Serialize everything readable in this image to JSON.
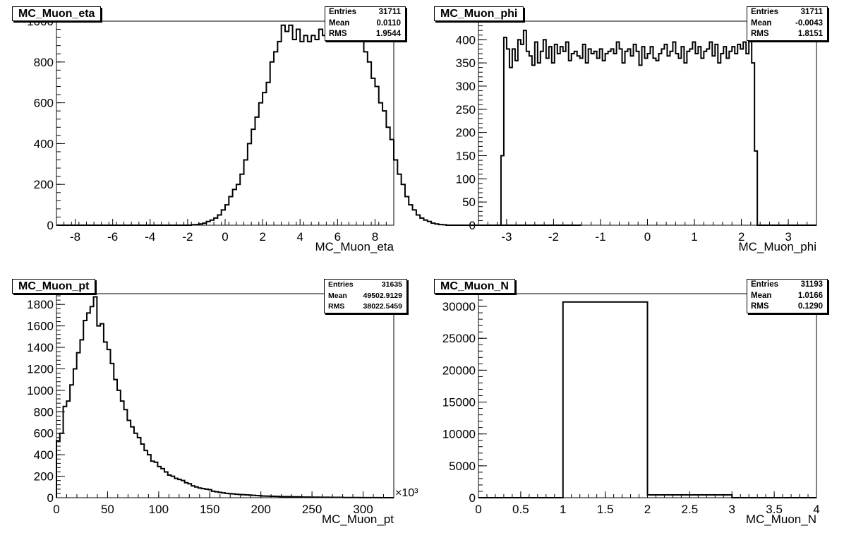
{
  "chart_data": [
    {
      "type": "histogram",
      "title": "MC_Muon_eta",
      "xlabel": "MC_Muon_eta",
      "ylabel": "",
      "xlim": [
        -9,
        9
      ],
      "ylim": [
        0,
        1000
      ],
      "xticks": [
        -8,
        -6,
        -4,
        -2,
        0,
        2,
        4,
        6,
        8
      ],
      "yticks": [
        0,
        200,
        400,
        600,
        800,
        1000
      ],
      "x_edges_start": -9,
      "bin_width": 0.2,
      "values": [
        0,
        0,
        0,
        0,
        0,
        0,
        0,
        0,
        0,
        0,
        0,
        0,
        0,
        0,
        0,
        0,
        0,
        0,
        0,
        0,
        0,
        0,
        0,
        0,
        0,
        0,
        0,
        0,
        0,
        0,
        0,
        0,
        0,
        0,
        0,
        0,
        2,
        3,
        6,
        10,
        18,
        25,
        35,
        50,
        75,
        100,
        140,
        175,
        200,
        250,
        320,
        400,
        470,
        530,
        600,
        650,
        700,
        800,
        850,
        900,
        980,
        950,
        980,
        910,
        960,
        900,
        930,
        900,
        930,
        910,
        960,
        930,
        900,
        960,
        940,
        980,
        950,
        960,
        950,
        940,
        920,
        900,
        850,
        800,
        720,
        680,
        600,
        560,
        480,
        420,
        320,
        250,
        200,
        140,
        100,
        75,
        50,
        35,
        25,
        18,
        10,
        6,
        3,
        2,
        0,
        0,
        0,
        0,
        0,
        0,
        0,
        0,
        0,
        0,
        0,
        0,
        0,
        0,
        0,
        0,
        0,
        0,
        0,
        0,
        0,
        0,
        0,
        0,
        0,
        0,
        0,
        0,
        0,
        0,
        0,
        0,
        0,
        0,
        0,
        0
      ],
      "stats": {
        "entries": "31711",
        "mean": "0.0110",
        "rms": "1.9544"
      }
    },
    {
      "type": "histogram",
      "title": "MC_Muon_phi",
      "xlabel": "MC_Muon_phi",
      "ylabel": "",
      "xlim": [
        -3.6,
        3.6
      ],
      "ylim": [
        0,
        440
      ],
      "xticks": [
        -3,
        -2,
        -1,
        0,
        1,
        2,
        3
      ],
      "yticks": [
        0,
        50,
        100,
        150,
        200,
        250,
        300,
        350,
        400
      ],
      "x_edges_start": -3.6,
      "bin_width": 0.06,
      "values": [
        0,
        0,
        0,
        0,
        0,
        0,
        0,
        0,
        150,
        405,
        380,
        340,
        380,
        355,
        400,
        390,
        420,
        375,
        365,
        345,
        395,
        350,
        375,
        400,
        360,
        385,
        350,
        390,
        370,
        385,
        375,
        395,
        355,
        370,
        375,
        365,
        360,
        390,
        350,
        380,
        370,
        375,
        360,
        380,
        355,
        370,
        375,
        380,
        370,
        395,
        380,
        350,
        375,
        380,
        365,
        390,
        375,
        345,
        385,
        360,
        370,
        385,
        360,
        355,
        370,
        380,
        390,
        365,
        375,
        395,
        370,
        360,
        385,
        350,
        375,
        380,
        395,
        370,
        385,
        360,
        375,
        380,
        395,
        365,
        390,
        350,
        370,
        385,
        360,
        375,
        385,
        370,
        390,
        380,
        395,
        370,
        405,
        350,
        160,
        0,
        0,
        0,
        0,
        0,
        0,
        0,
        0,
        0,
        0,
        0,
        0,
        0,
        0,
        0,
        0,
        0,
        0,
        0,
        0,
        0
      ],
      "stats": {
        "entries": "31711",
        "mean": "-0.0043",
        "rms": "1.8151"
      }
    },
    {
      "type": "histogram",
      "title": "MC_Muon_pt",
      "xlabel": "MC_Muon_pt",
      "ylabel": "",
      "x_multiplier_label": "×10³",
      "xlim": [
        0,
        330
      ],
      "ylim": [
        0,
        1900
      ],
      "xticks": [
        0,
        50,
        100,
        150,
        200,
        250,
        300
      ],
      "yticks": [
        0,
        200,
        400,
        600,
        800,
        1000,
        1200,
        1400,
        1600,
        1800
      ],
      "x_edges_start": 0,
      "bin_width": 3.3,
      "values": [
        530,
        600,
        850,
        900,
        1050,
        1200,
        1350,
        1470,
        1650,
        1720,
        1780,
        1870,
        1600,
        1620,
        1450,
        1380,
        1250,
        1100,
        1000,
        900,
        820,
        720,
        660,
        600,
        560,
        500,
        440,
        400,
        340,
        330,
        290,
        270,
        240,
        210,
        200,
        180,
        170,
        160,
        140,
        130,
        110,
        100,
        90,
        85,
        80,
        75,
        60,
        55,
        50,
        45,
        40,
        38,
        35,
        32,
        30,
        28,
        26,
        24,
        22,
        20,
        18,
        16,
        15,
        14,
        13,
        12,
        11,
        10,
        10,
        9,
        8,
        8,
        7,
        6,
        6,
        5,
        5,
        5,
        4,
        4,
        4,
        3,
        3,
        3,
        3,
        2,
        2,
        2,
        2,
        2,
        1,
        1,
        1,
        1,
        1,
        1,
        0,
        0,
        0,
        0
      ],
      "stats": {
        "entries": "31635",
        "mean": "49502.9129",
        "rms": "38022.5459"
      }
    },
    {
      "type": "histogram",
      "title": "MC_Muon_N",
      "xlabel": "MC_Muon_N",
      "ylabel": "",
      "xlim": [
        0,
        4
      ],
      "ylim": [
        0,
        32000
      ],
      "xticks": [
        0,
        0.5,
        1,
        1.5,
        2,
        2.5,
        3,
        3.5,
        4
      ],
      "yticks": [
        0,
        5000,
        10000,
        15000,
        20000,
        25000,
        30000
      ],
      "x_edges_start": 0,
      "bin_width": 1,
      "values": [
        0,
        30700,
        450,
        0
      ],
      "stats": {
        "entries": "31193",
        "mean": "1.0166",
        "rms": "0.1290"
      }
    }
  ],
  "stats_labels": {
    "entries": "Entries",
    "mean": "Mean",
    "rms": "RMS"
  }
}
